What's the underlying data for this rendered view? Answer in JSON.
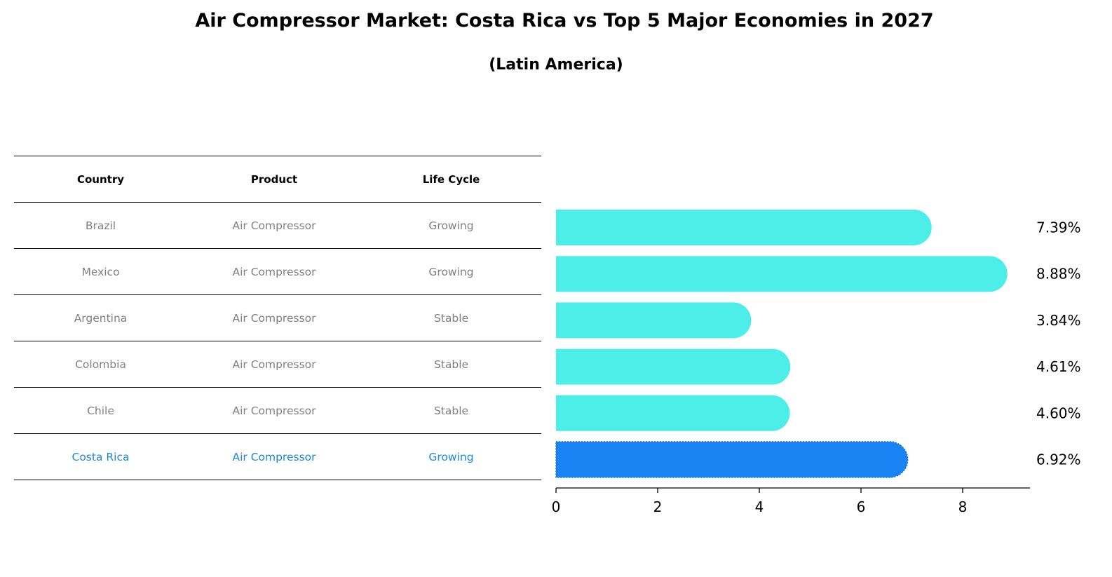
{
  "title": "Air Compressor Market: Costa Rica vs Top 5 Major Economies in 2027",
  "subtitle": "(Latin America)",
  "table": {
    "headers": [
      "Country",
      "Product",
      "Life Cycle"
    ],
    "rows": [
      {
        "country": "Brazil",
        "product": "Air Compressor",
        "life_cycle": "Growing"
      },
      {
        "country": "Mexico",
        "product": "Air Compressor",
        "life_cycle": "Growing"
      },
      {
        "country": "Argentina",
        "product": "Air Compressor",
        "life_cycle": "Stable"
      },
      {
        "country": "Colombia",
        "product": "Air Compressor",
        "life_cycle": "Stable"
      },
      {
        "country": "Chile",
        "product": "Air Compressor",
        "life_cycle": "Stable"
      },
      {
        "country": "Costa Rica",
        "product": "Air Compressor",
        "life_cycle": "Growing"
      }
    ]
  },
  "chart_data": {
    "type": "bar",
    "orientation": "horizontal",
    "categories": [
      "Brazil",
      "Mexico",
      "Argentina",
      "Colombia",
      "Chile",
      "Costa Rica"
    ],
    "values": [
      7.39,
      8.88,
      3.84,
      4.61,
      4.6,
      6.92
    ],
    "value_labels": [
      "7.39%",
      "8.88%",
      "3.84%",
      "4.61%",
      "4.60%",
      "6.92%"
    ],
    "highlight": "Costa Rica",
    "xlim": [
      0,
      9.33
    ],
    "xticks": [
      0,
      2,
      4,
      6,
      8
    ],
    "xlabel": "",
    "ylabel": "",
    "grid": false,
    "colors": {
      "bar": "#4deee8",
      "highlight_bar": "#1a84f5",
      "highlight_text": "#1a88e0",
      "table_text": "#808080"
    }
  }
}
